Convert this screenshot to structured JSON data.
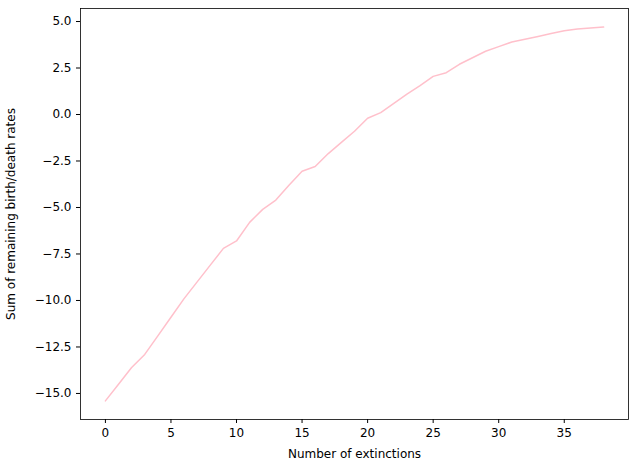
{
  "chart_data": {
    "type": "line",
    "x_label": "Number of extinctions",
    "y_label": "Sum of remaining birth/death rates",
    "x": [
      0,
      1,
      2,
      3,
      4,
      5,
      6,
      7,
      8,
      9,
      10,
      11,
      12,
      13,
      14,
      15,
      16,
      17,
      18,
      19,
      20,
      21,
      22,
      23,
      24,
      25,
      26,
      27,
      28,
      29,
      30,
      31,
      32,
      33,
      34,
      35,
      36,
      37,
      38
    ],
    "values": [
      -15.4,
      -14.5,
      -13.6,
      -12.9,
      -11.9,
      -10.9,
      -9.9,
      -9.0,
      -8.1,
      -7.2,
      -6.8,
      -5.8,
      -5.1,
      -4.6,
      -3.8,
      -3.05,
      -2.8,
      -2.1,
      -1.5,
      -0.9,
      -0.2,
      0.1,
      0.6,
      1.1,
      1.55,
      2.05,
      2.25,
      2.7,
      3.05,
      3.4,
      3.65,
      3.9,
      4.05,
      4.2,
      4.35,
      4.5,
      4.6,
      4.65,
      4.7
    ],
    "color": "pink",
    "xlim": [
      -1.9,
      39.9
    ],
    "ylim": [
      -16.4,
      5.7
    ],
    "xticks": [
      0,
      5,
      10,
      15,
      20,
      25,
      30,
      35
    ],
    "yticks": [
      {
        "value": -15,
        "label": "−15.0"
      },
      {
        "value": -12.5,
        "label": "−12.5"
      },
      {
        "value": -10,
        "label": "−10.0"
      },
      {
        "value": -7.5,
        "label": "−7.5"
      },
      {
        "value": -5,
        "label": "−5.0"
      },
      {
        "value": -2.5,
        "label": "−2.5"
      },
      {
        "value": 0,
        "label": "0.0"
      },
      2.5,
      {
        "value": 5,
        "label": "5.0"
      }
    ],
    "grid": false
  }
}
